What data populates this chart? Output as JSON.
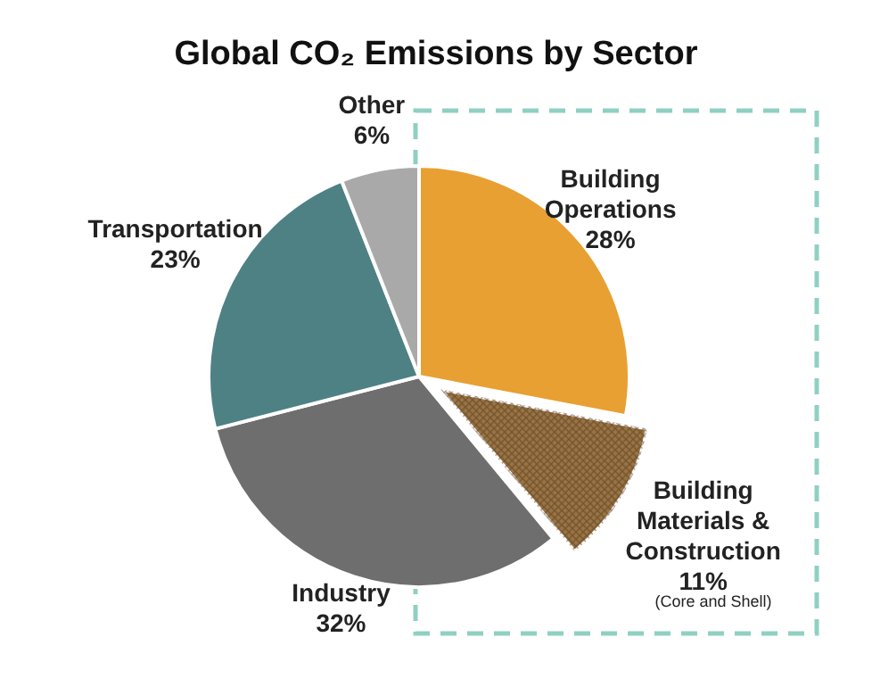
{
  "chart_data": {
    "type": "pie",
    "title": "Global CO₂ Emissions by Sector",
    "categories": [
      "Building Operations",
      "Building Materials & Construction",
      "Industry",
      "Transportation",
      "Other"
    ],
    "values": [
      28,
      11,
      32,
      23,
      6
    ],
    "value_labels": [
      "28%",
      "11%",
      "32%",
      "23%",
      "6%"
    ],
    "colors": [
      "#e8a032",
      "#9a7444",
      "#6e6e6e",
      "#4e8184",
      "#a9a9a9"
    ],
    "annotations": [
      "(Core and Shell)"
    ]
  }
}
